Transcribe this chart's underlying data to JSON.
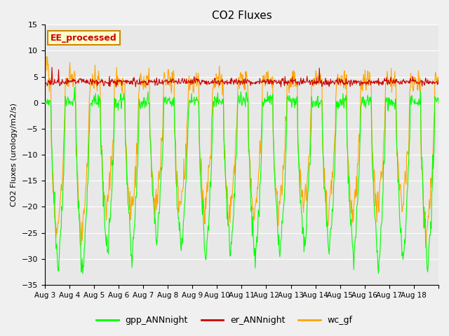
{
  "title": "CO2 Fluxes",
  "ylabel": "CO2 Fluxes (urology/m2/s)",
  "ylim": [
    -35,
    15
  ],
  "yticks": [
    -35,
    -30,
    -25,
    -20,
    -15,
    -10,
    -5,
    0,
    5,
    10,
    15
  ],
  "n_days": 16,
  "half_hours_per_day": 48,
  "bg_color": "#e8e8e8",
  "fig_bg_color": "#f0f0f0",
  "legend_entries": [
    "gpp_ANNnight",
    "er_ANNnight",
    "wc_gf"
  ],
  "legend_colors": [
    "#00ff00",
    "#cc0000",
    "#ffa500"
  ],
  "annotation_text": "EE_processed",
  "annotation_color": "#cc0000",
  "annotation_bg": "#ffffcc",
  "annotation_border": "#cc8800",
  "x_tick_labels": [
    "Aug 3",
    "Aug 4",
    "Aug 5",
    "Aug 6",
    "Aug 7",
    "Aug 8",
    "Aug 9",
    "Aug 10",
    "Aug 11",
    "Aug 12",
    "Aug 13",
    "Aug 14",
    "Aug 15",
    "Aug 16",
    "Aug 17",
    "Aug 18"
  ],
  "seed": 42
}
